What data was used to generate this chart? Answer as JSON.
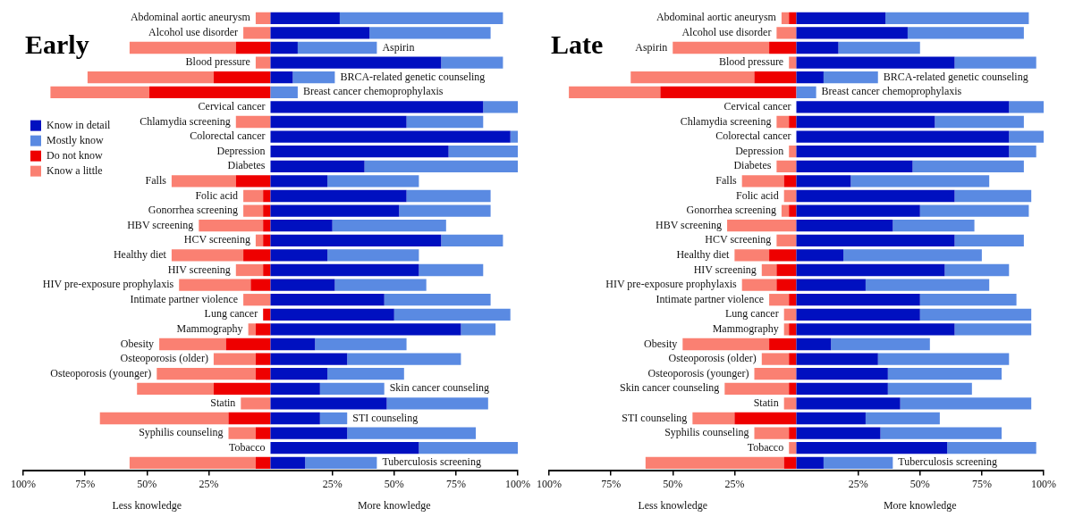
{
  "chart_data": [
    {
      "type": "bar",
      "orientation": "horizontal",
      "stacked": true,
      "title": "Early",
      "legend": "left",
      "grid": false,
      "categories": [
        "Abdominal aortic aneurysm",
        "Alcohol use disorder",
        "Aspirin",
        "Blood pressure",
        "BRCA-related genetic counseling",
        "Breast cancer chemoprophylaxis",
        "Cervical cancer",
        "Chlamydia screening",
        "Colorectal cancer",
        "Depression",
        "Diabetes",
        "Falls",
        "Folic acid",
        "Gonorrhea screening",
        "HBV screening",
        "HCV screening",
        "Healthy diet",
        "HIV screening",
        "HIV pre-exposure prophylaxis",
        "Intimate partner violence",
        "Lung cancer",
        "Mammography",
        "Obesity",
        "Osteoporosis (older)",
        "Osteoporosis (younger)",
        "Skin cancer counseling",
        "Statin",
        "STI counseling",
        "Syphilis counseling",
        "Tobacco",
        "Tuberculosis screening"
      ],
      "series": [
        {
          "name": "Know in detail",
          "color": "#0010c0",
          "values": [
            28,
            40,
            11,
            69,
            9,
            0,
            86,
            55,
            97,
            72,
            38,
            23,
            55,
            52,
            25,
            69,
            23,
            60,
            26,
            46,
            50,
            77,
            18,
            31,
            23,
            20,
            47,
            20,
            31,
            60,
            14
          ]
        },
        {
          "name": "Mostly know",
          "color": "#5a8ae2",
          "values": [
            66,
            49,
            32,
            25,
            17,
            11,
            14,
            31,
            3,
            28,
            62,
            37,
            34,
            37,
            46,
            25,
            37,
            26,
            37,
            43,
            47,
            14,
            37,
            46,
            31,
            26,
            41,
            11,
            52,
            40,
            29
          ]
        },
        {
          "name": "Do not know",
          "color": "#ee0000",
          "values": [
            0,
            0,
            -14,
            0,
            -23,
            -49,
            0,
            0,
            0,
            0,
            0,
            -14,
            -3,
            -3,
            -3,
            -3,
            -11,
            -3,
            -8,
            0,
            -3,
            -6,
            -18,
            -6,
            -6,
            -23,
            0,
            -17,
            -6,
            0,
            -6
          ]
        },
        {
          "name": "Know a little",
          "color": "#fa8072",
          "values": [
            -6,
            -11,
            -43,
            -6,
            -51,
            -40,
            0,
            -14,
            0,
            0,
            0,
            -26,
            -8,
            -8,
            -26,
            -3,
            -29,
            -11,
            -29,
            -11,
            0,
            -3,
            -27,
            -17,
            -40,
            -31,
            -12,
            -52,
            -11,
            0,
            -51
          ]
        }
      ],
      "xlim": [
        -100,
        100
      ],
      "xticks": [
        {
          "value": -100,
          "label": "100%"
        },
        {
          "value": -75,
          "label": "75%"
        },
        {
          "value": -50,
          "label": "50%"
        },
        {
          "value": -25,
          "label": "25%"
        },
        {
          "value": 25,
          "label": "25%"
        },
        {
          "value": 50,
          "label": "50%"
        },
        {
          "value": 75,
          "label": "75%"
        },
        {
          "value": 100,
          "label": "100%"
        }
      ],
      "annotations": [
        "Less knowledge",
        "More knowledge"
      ]
    },
    {
      "type": "bar",
      "orientation": "horizontal",
      "stacked": true,
      "title": "Late",
      "grid": false,
      "categories": [
        "Abdominal aortic aneurysm",
        "Alcohol use disorder",
        "Aspirin",
        "Blood pressure",
        "BRCA-related genetic counseling",
        "Breast cancer chemoprophylaxis",
        "Cervical cancer",
        "Chlamydia screening",
        "Colorectal cancer",
        "Depression",
        "Diabetes",
        "Falls",
        "Folic acid",
        "Gonorrhea screening",
        "HBV screening",
        "HCV screening",
        "Healthy diet",
        "HIV screening",
        "HIV pre-exposure prophylaxis",
        "Intimate partner violence",
        "Lung cancer",
        "Mammography",
        "Obesity",
        "Osteoporosis (older)",
        "Osteoporosis (younger)",
        "Skin cancer counseling",
        "Statin",
        "STI counseling",
        "Syphilis counseling",
        "Tobacco",
        "Tuberculosis screening"
      ],
      "series": [
        {
          "color": "#0010c0",
          "values": [
            36,
            45,
            17,
            64,
            11,
            0,
            86,
            56,
            86,
            86,
            47,
            22,
            64,
            50,
            39,
            64,
            19,
            60,
            28,
            50,
            50,
            64,
            14,
            33,
            37,
            37,
            42,
            28,
            34,
            61,
            11
          ]
        },
        {
          "color": "#5a8ae2",
          "values": [
            58,
            47,
            33,
            33,
            22,
            8,
            14,
            36,
            14,
            11,
            45,
            56,
            31,
            44,
            33,
            28,
            56,
            26,
            50,
            39,
            45,
            31,
            40,
            53,
            46,
            34,
            53,
            30,
            49,
            36,
            28
          ]
        },
        {
          "color": "#ee0000",
          "values": [
            -3,
            0,
            -11,
            0,
            -17,
            -55,
            0,
            -3,
            0,
            0,
            0,
            -5,
            0,
            -3,
            0,
            0,
            -11,
            -8,
            -8,
            -3,
            0,
            -3,
            -11,
            -3,
            0,
            -3,
            0,
            -25,
            -3,
            0,
            -5
          ]
        },
        {
          "color": "#fa8072",
          "values": [
            -3,
            -8,
            -39,
            -3,
            -50,
            -37,
            0,
            -5,
            0,
            -3,
            -8,
            -17,
            -5,
            -3,
            -28,
            -8,
            -14,
            -6,
            -14,
            -8,
            -5,
            -2,
            -35,
            -11,
            -17,
            -26,
            -5,
            -17,
            -14,
            -3,
            -56
          ]
        }
      ],
      "xlim": [
        -100,
        100
      ],
      "xticks": [
        {
          "value": -100,
          "label": "100%"
        },
        {
          "value": -75,
          "label": "75%"
        },
        {
          "value": -50,
          "label": "50%"
        },
        {
          "value": -25,
          "label": "25%"
        },
        {
          "value": 25,
          "label": "25%"
        },
        {
          "value": 50,
          "label": "50%"
        },
        {
          "value": 75,
          "label": "75%"
        },
        {
          "value": 100,
          "label": "100%"
        }
      ],
      "annotations": [
        "Less knowledge",
        "More knowledge"
      ]
    }
  ]
}
